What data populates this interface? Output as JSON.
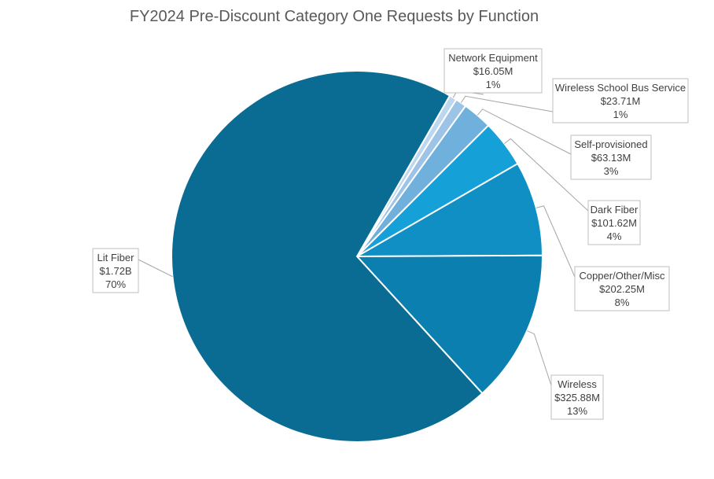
{
  "chart_data": {
    "type": "pie",
    "title": "FY2024 Pre-Discount Category One Requests by Function",
    "slices": [
      {
        "name": "Network Equipment",
        "amount_label": "$16.05M",
        "percent_label": "1%",
        "value": 16.05,
        "color": "#bdd7ee"
      },
      {
        "name": "Wireless School Bus Service",
        "amount_label": "$23.71M",
        "percent_label": "1%",
        "value": 23.71,
        "color": "#9dc3e6"
      },
      {
        "name": "Self-provisioned",
        "amount_label": "$63.13M",
        "percent_label": "3%",
        "value": 63.13,
        "color": "#6fb1dc"
      },
      {
        "name": "Dark Fiber",
        "amount_label": "$101.62M",
        "percent_label": "4%",
        "value": 101.62,
        "color": "#16a0d8"
      },
      {
        "name": "Copper/Other/Misc",
        "amount_label": "$202.25M",
        "percent_label": "8%",
        "value": 202.25,
        "color": "#108fc5"
      },
      {
        "name": "Wireless",
        "amount_label": "$325.88M",
        "percent_label": "13%",
        "value": 325.88,
        "color": "#0b80b0"
      },
      {
        "name": "Lit Fiber",
        "amount_label": "$1.72B",
        "percent_label": "70%",
        "value": 1720,
        "color": "#0a6c93"
      }
    ],
    "start_angle_deg": 30,
    "direction": "clockwise"
  }
}
